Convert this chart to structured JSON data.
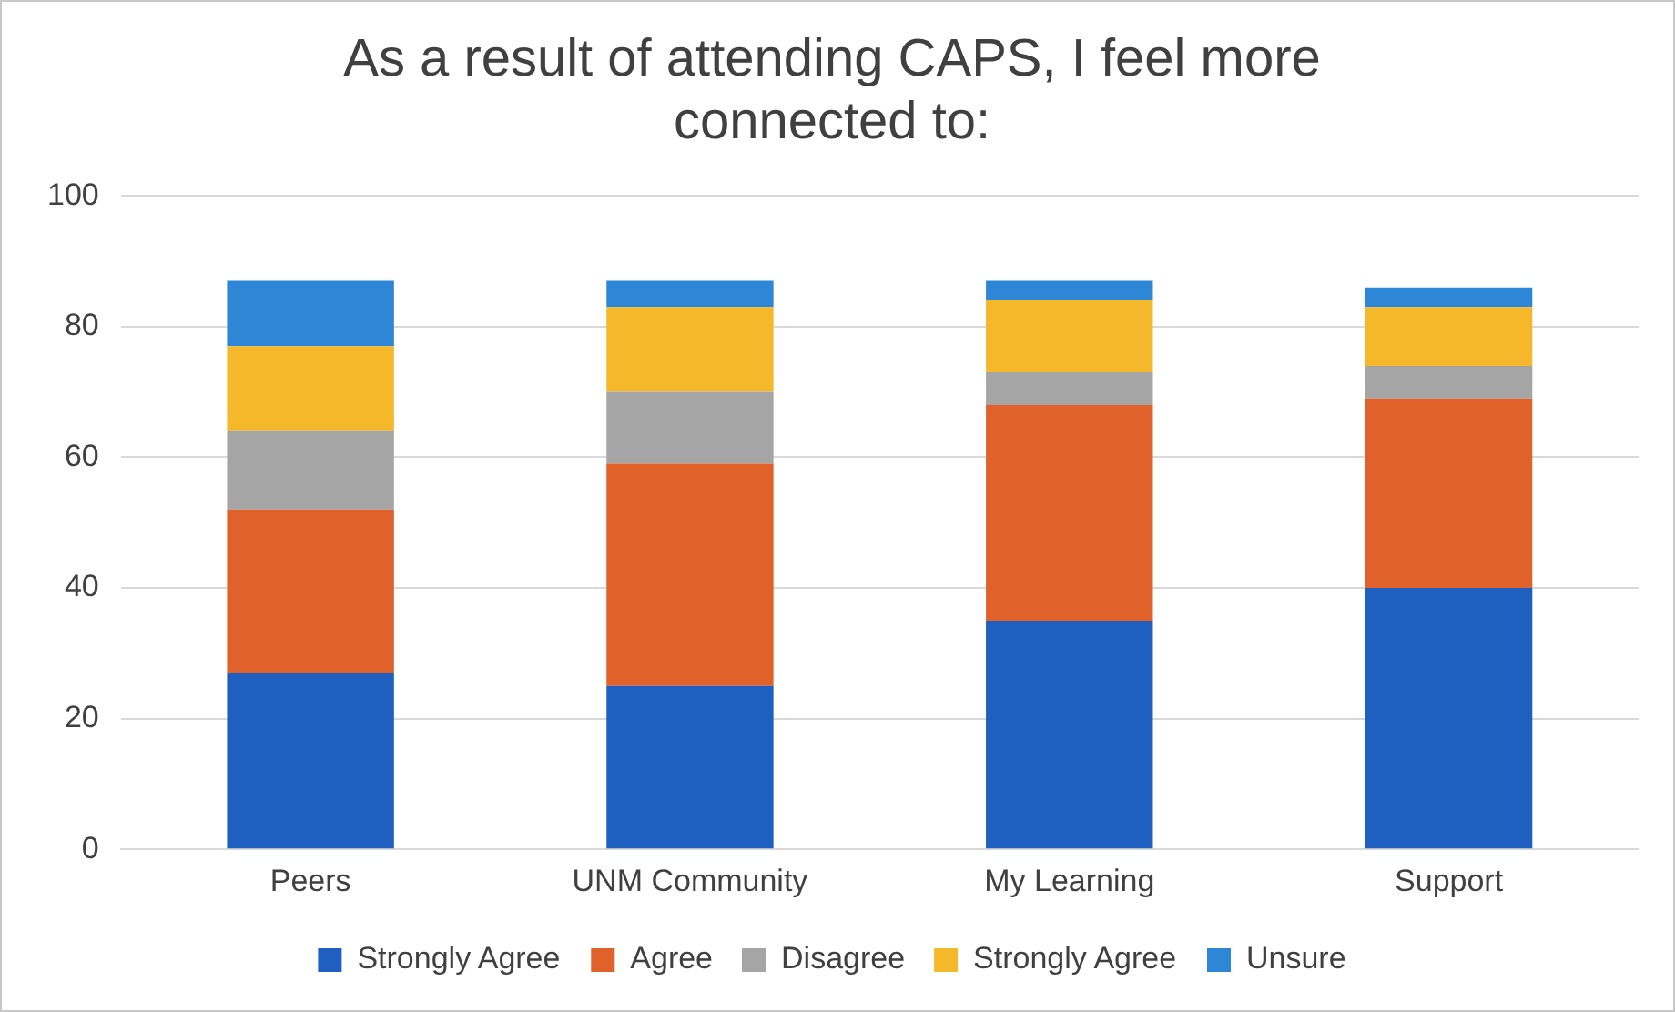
{
  "chart_data": {
    "type": "bar",
    "title": "As a result of attending CAPS, I feel more connected to:",
    "categories": [
      "Peers",
      "UNM Community",
      "My Learning",
      "Support"
    ],
    "series": [
      {
        "name": "Strongly Agree",
        "color": "#1f5fbf",
        "values": [
          27,
          25,
          35,
          40
        ]
      },
      {
        "name": "Agree",
        "color": "#e0622a",
        "values": [
          25,
          34,
          33,
          29
        ]
      },
      {
        "name": "Disagree",
        "color": "#a5a5a5",
        "values": [
          12,
          11,
          5,
          5
        ]
      },
      {
        "name": "Strongly Agree",
        "color": "#f5b82a",
        "values": [
          13,
          13,
          11,
          9
        ]
      },
      {
        "name": "Unsure",
        "color": "#2e86d6",
        "values": [
          10,
          4,
          3,
          3
        ]
      }
    ],
    "stacked": true,
    "ylim": [
      0,
      100
    ],
    "yticks": [
      0,
      20,
      40,
      60,
      80,
      100
    ],
    "grid": "y",
    "legend": "bottom"
  }
}
